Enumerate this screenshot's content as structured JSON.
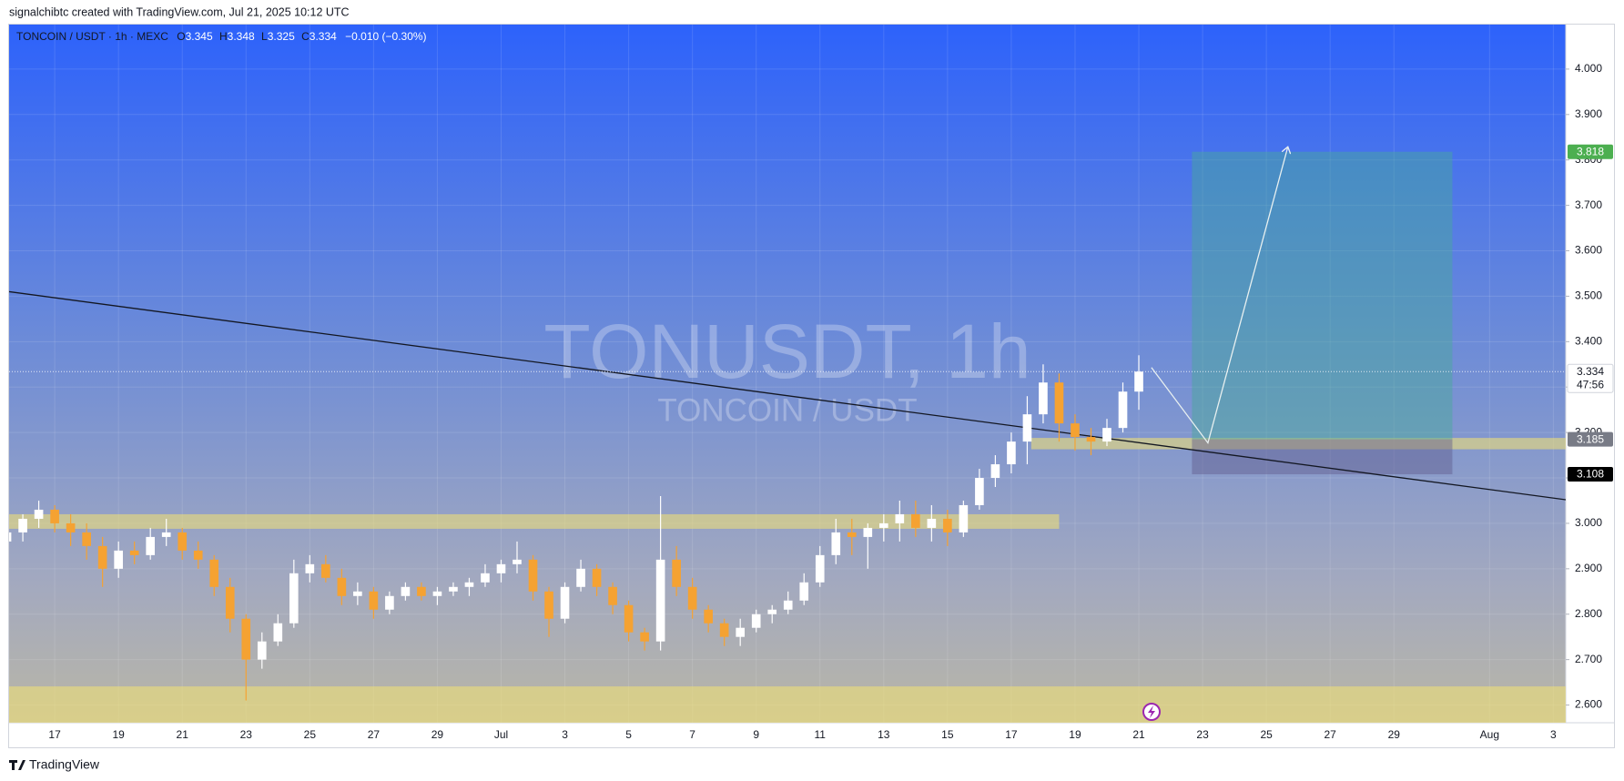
{
  "header": {
    "attribution": "signalchibtc created with TradingView.com, Jul 21, 2025 10:12 UTC"
  },
  "chart_data": {
    "type": "candlestick",
    "symbol": "TONCOIN / USDT · 1h · MEXC",
    "legend_values": [
      {
        "label": "O",
        "value": 3.345
      },
      {
        "label": "H",
        "value": 3.348
      },
      {
        "label": "L",
        "value": 3.325
      },
      {
        "label": "C",
        "value": 3.334
      }
    ],
    "change": "−0.010 (−0.30%)",
    "watermark": "TONUSDT, 1h",
    "watermark_subtitle": "TONCOIN / USDT",
    "x": [
      "2025-06-15T12:00",
      "2025-06-16T00:00",
      "2025-06-16T12:00",
      "2025-06-17T00:00",
      "2025-06-17T12:00",
      "2025-06-18T00:00",
      "2025-06-18T12:00",
      "2025-06-19T00:00",
      "2025-06-19T12:00",
      "2025-06-20T00:00",
      "2025-06-20T12:00",
      "2025-06-21T00:00",
      "2025-06-21T12:00",
      "2025-06-22T00:00",
      "2025-06-22T12:00",
      "2025-06-23T00:00",
      "2025-06-23T12:00",
      "2025-06-24T00:00",
      "2025-06-24T12:00",
      "2025-06-25T00:00",
      "2025-06-25T12:00",
      "2025-06-26T00:00",
      "2025-06-26T12:00",
      "2025-06-27T00:00",
      "2025-06-27T12:00",
      "2025-06-28T00:00",
      "2025-06-28T12:00",
      "2025-06-29T00:00",
      "2025-06-29T12:00",
      "2025-06-30T00:00",
      "2025-06-30T12:00",
      "2025-07-01T00:00",
      "2025-07-01T12:00",
      "2025-07-02T00:00",
      "2025-07-02T12:00",
      "2025-07-03T00:00",
      "2025-07-03T12:00",
      "2025-07-04T00:00",
      "2025-07-04T12:00",
      "2025-07-05T00:00",
      "2025-07-05T12:00",
      "2025-07-06T00:00",
      "2025-07-06T12:00",
      "2025-07-07T00:00",
      "2025-07-07T12:00",
      "2025-07-08T00:00",
      "2025-07-08T12:00",
      "2025-07-09T00:00",
      "2025-07-09T12:00",
      "2025-07-10T00:00",
      "2025-07-10T12:00",
      "2025-07-11T00:00",
      "2025-07-11T12:00",
      "2025-07-12T00:00",
      "2025-07-12T12:00",
      "2025-07-13T00:00",
      "2025-07-13T12:00",
      "2025-07-14T00:00",
      "2025-07-14T12:00",
      "2025-07-15T00:00",
      "2025-07-15T12:00",
      "2025-07-16T00:00",
      "2025-07-16T12:00",
      "2025-07-17T00:00",
      "2025-07-17T12:00",
      "2025-07-18T00:00",
      "2025-07-18T12:00",
      "2025-07-19T00:00",
      "2025-07-19T12:00",
      "2025-07-20T00:00",
      "2025-07-20T12:00",
      "2025-07-21T00:00"
    ],
    "open": [
      2.96,
      2.98,
      3.01,
      3.03,
      3.0,
      2.98,
      2.95,
      2.9,
      2.94,
      2.93,
      2.97,
      2.98,
      2.94,
      2.92,
      2.86,
      2.79,
      2.7,
      2.74,
      2.78,
      2.89,
      2.91,
      2.88,
      2.84,
      2.85,
      2.81,
      2.84,
      2.86,
      2.84,
      2.85,
      2.86,
      2.87,
      2.89,
      2.91,
      2.92,
      2.85,
      2.79,
      2.86,
      2.9,
      2.86,
      2.82,
      2.76,
      2.74,
      2.92,
      2.86,
      2.81,
      2.78,
      2.75,
      2.77,
      2.8,
      2.81,
      2.83,
      2.87,
      2.93,
      2.98,
      2.97,
      2.99,
      3.0,
      3.02,
      2.99,
      3.01,
      2.98,
      3.04,
      3.1,
      3.13,
      3.18,
      3.24,
      3.31,
      3.22,
      3.19,
      3.18,
      3.21,
      3.29
    ],
    "high": [
      2.99,
      3.02,
      3.05,
      3.04,
      3.02,
      3.0,
      2.97,
      2.96,
      2.96,
      2.99,
      3.01,
      2.99,
      2.96,
      2.93,
      2.88,
      2.8,
      2.76,
      2.8,
      2.92,
      2.93,
      2.93,
      2.9,
      2.87,
      2.86,
      2.85,
      2.87,
      2.87,
      2.86,
      2.87,
      2.88,
      2.91,
      2.92,
      2.96,
      2.93,
      2.86,
      2.87,
      2.92,
      2.91,
      2.87,
      2.83,
      2.77,
      3.06,
      2.95,
      2.88,
      2.82,
      2.79,
      2.79,
      2.81,
      2.82,
      2.85,
      2.89,
      2.95,
      3.01,
      3.01,
      3.0,
      3.02,
      3.05,
      3.05,
      3.04,
      3.03,
      3.05,
      3.12,
      3.15,
      3.2,
      3.28,
      3.35,
      3.33,
      3.24,
      3.21,
      3.23,
      3.31,
      3.37
    ],
    "low": [
      2.94,
      2.96,
      2.99,
      2.98,
      2.95,
      2.92,
      2.86,
      2.88,
      2.91,
      2.92,
      2.95,
      2.92,
      2.9,
      2.84,
      2.76,
      2.61,
      2.68,
      2.73,
      2.77,
      2.87,
      2.87,
      2.82,
      2.82,
      2.79,
      2.8,
      2.83,
      2.83,
      2.82,
      2.84,
      2.84,
      2.86,
      2.87,
      2.89,
      2.83,
      2.75,
      2.78,
      2.85,
      2.84,
      2.8,
      2.74,
      2.72,
      2.72,
      2.84,
      2.79,
      2.76,
      2.73,
      2.73,
      2.76,
      2.78,
      2.8,
      2.82,
      2.86,
      2.91,
      2.93,
      2.9,
      2.96,
      2.96,
      2.97,
      2.96,
      2.95,
      2.97,
      3.03,
      3.08,
      3.11,
      3.13,
      3.22,
      3.18,
      3.16,
      3.15,
      3.17,
      3.2,
      3.25
    ],
    "close": [
      2.98,
      3.01,
      3.03,
      3.0,
      2.98,
      2.95,
      2.9,
      2.94,
      2.93,
      2.97,
      2.98,
      2.94,
      2.92,
      2.86,
      2.79,
      2.7,
      2.74,
      2.78,
      2.89,
      2.91,
      2.88,
      2.84,
      2.85,
      2.81,
      2.84,
      2.86,
      2.84,
      2.85,
      2.86,
      2.87,
      2.89,
      2.91,
      2.92,
      2.85,
      2.79,
      2.86,
      2.9,
      2.86,
      2.82,
      2.76,
      2.74,
      2.92,
      2.86,
      2.81,
      2.78,
      2.75,
      2.77,
      2.8,
      2.81,
      2.83,
      2.87,
      2.93,
      2.98,
      2.97,
      2.99,
      3.0,
      3.02,
      2.99,
      3.01,
      2.98,
      3.04,
      3.1,
      3.13,
      3.18,
      3.24,
      3.31,
      3.22,
      3.19,
      3.18,
      3.21,
      3.29,
      3.334
    ],
    "up_color": "#ffffff",
    "down_color": "#f5a232",
    "xlim": [
      "2025-06-15T13:40",
      "2025-08-03T09:20"
    ],
    "xticks": [
      {
        "value": "2025-06-17T00:00",
        "label": "17"
      },
      {
        "value": "2025-06-19T00:00",
        "label": "19"
      },
      {
        "value": "2025-06-21T00:00",
        "label": "21"
      },
      {
        "value": "2025-06-23T00:00",
        "label": "23"
      },
      {
        "value": "2025-06-25T00:00",
        "label": "25"
      },
      {
        "value": "2025-06-27T00:00",
        "label": "27"
      },
      {
        "value": "2025-06-29T00:00",
        "label": "29"
      },
      {
        "value": "2025-07-01T00:00",
        "label": "Jul"
      },
      {
        "value": "2025-07-03T00:00",
        "label": "3"
      },
      {
        "value": "2025-07-05T00:00",
        "label": "5"
      },
      {
        "value": "2025-07-07T00:00",
        "label": "7"
      },
      {
        "value": "2025-07-09T00:00",
        "label": "9"
      },
      {
        "value": "2025-07-11T00:00",
        "label": "11"
      },
      {
        "value": "2025-07-13T00:00",
        "label": "13"
      },
      {
        "value": "2025-07-15T00:00",
        "label": "15"
      },
      {
        "value": "2025-07-17T00:00",
        "label": "17"
      },
      {
        "value": "2025-07-19T00:00",
        "label": "19"
      },
      {
        "value": "2025-07-21T00:00",
        "label": "21"
      },
      {
        "value": "2025-07-23T00:00",
        "label": "23"
      },
      {
        "value": "2025-07-25T00:00",
        "label": "25"
      },
      {
        "value": "2025-07-27T00:00",
        "label": "27"
      },
      {
        "value": "2025-07-29T00:00",
        "label": "29"
      },
      {
        "value": "2025-08-01T00:00",
        "label": "Aug"
      },
      {
        "value": "2025-08-03T00:00",
        "label": "3"
      }
    ],
    "ylim": [
      2.561,
      4.098
    ],
    "yticks": [
      {
        "value": 2.6,
        "label": "2.600"
      },
      {
        "value": 2.7,
        "label": "2.700"
      },
      {
        "value": 2.8,
        "label": "2.800"
      },
      {
        "value": 2.9,
        "label": "2.900"
      },
      {
        "value": 3,
        "label": "3.000"
      },
      {
        "value": 3.1,
        "label": "3.100"
      },
      {
        "value": 3.2,
        "label": "3.200"
      },
      {
        "value": 3.3,
        "label": "3.300"
      },
      {
        "value": 3.4,
        "label": "3.400"
      },
      {
        "value": 3.5,
        "label": "3.500"
      },
      {
        "value": 3.6,
        "label": "3.600"
      },
      {
        "value": 3.7,
        "label": "3.700"
      },
      {
        "value": 3.8,
        "label": "3.800"
      },
      {
        "value": 3.9,
        "label": "3.900"
      },
      {
        "value": 4,
        "label": "4.000"
      }
    ],
    "grid": true,
    "last_price": 3.334,
    "countdown": "47:56",
    "zones": [
      {
        "x": [
          "2025-06-14T00:00",
          "2025-07-18T12:00"
        ],
        "y": [
          2.988,
          3.02
        ],
        "color": "rgba(236,222,120,0.6)"
      },
      {
        "x": [
          "2025-07-17T15:00",
          "2025-08-05T00:00"
        ],
        "y": [
          3.163,
          3.188
        ],
        "color": "rgba(236,222,120,0.6)"
      },
      {
        "x": [
          "2025-06-14T00:00",
          "2025-08-05T00:00"
        ],
        "y": [
          2.561,
          2.641
        ],
        "color": "rgba(236,222,120,0.6)"
      }
    ],
    "trendline": {
      "x": [
        "2025-06-15T13:40",
        "2025-08-03T09:20"
      ],
      "y": [
        3.51,
        3.052
      ],
      "color": "#131722"
    },
    "position": {
      "x": [
        "2025-07-22T16:00",
        "2025-07-30T20:00"
      ],
      "entry": 3.185,
      "target": 3.818,
      "stop": 3.108,
      "target_color": "rgba(70,170,150,0.45)",
      "stop_color": "rgba(95,90,140,0.45)",
      "target_label_color": "#4caf50",
      "entry_label_color": "#787b86",
      "stop_label_color": "#000000"
    },
    "path": {
      "x": [
        "2025-07-21T09:30",
        "2025-07-23T04:00",
        "2025-07-25T16:00"
      ],
      "y": [
        3.343,
        3.177,
        3.827
      ],
      "color": "#e8f0f0"
    }
  },
  "footer": {
    "brand": "TradingView"
  }
}
